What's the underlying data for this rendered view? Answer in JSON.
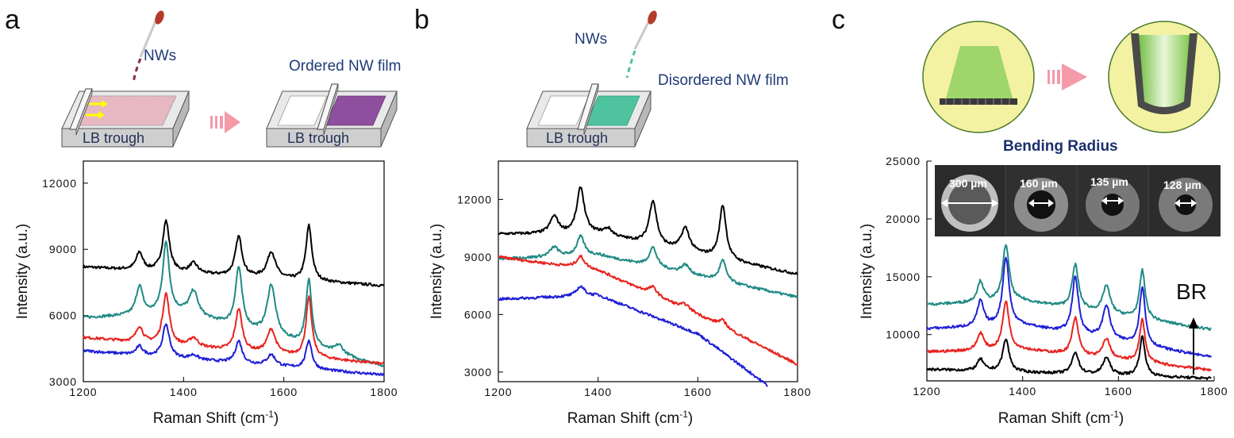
{
  "panels": {
    "a": {
      "label": "a",
      "nws": "NWs",
      "film": "Ordered NW film",
      "trough1": "LB trough",
      "trough2": "LB trough"
    },
    "b": {
      "label": "b",
      "nws": "NWs",
      "film": "Disordered NW film",
      "trough": "LB trough"
    },
    "c": {
      "label": "c",
      "bending": "Bending  Radius",
      "br": "BR",
      "insets": [
        "300 µm",
        "160 µm",
        "135 µm",
        "128 µm"
      ]
    }
  },
  "colors": {
    "black": "#000000",
    "teal": "#1f8a84",
    "red": "#e8231f",
    "blue": "#1f1fd6",
    "pink": "#f49aa8",
    "purple": "#8e4f9e",
    "green": "#4fc39e",
    "yellowgreen": "#f3f2a2"
  },
  "chart_data": [
    {
      "type": "line",
      "panel": "a",
      "xlabel": "Raman Shift (cm-1)",
      "ylabel": "Intensity (a.u.)",
      "xlim": [
        1200,
        1800
      ],
      "ylim": [
        3000,
        13000
      ],
      "xticks": [
        1200,
        1400,
        1600,
        1800
      ],
      "yticks": [
        3000,
        6000,
        9000,
        12000
      ],
      "xtick_labels": [
        "1200",
        "1400",
        "1600",
        "1800"
      ],
      "ytick_labels": [
        "3000",
        "6000",
        "9000",
        "12000"
      ],
      "series": [
        {
          "color": "black",
          "baseline": [
            [
              1200,
              8200
            ],
            [
              1800,
              7350
            ]
          ],
          "peaks": [
            [
              1312,
              800,
              8
            ],
            [
              1365,
              2300,
              8
            ],
            [
              1420,
              450,
              10
            ],
            [
              1510,
              1800,
              8
            ],
            [
              1575,
              1200,
              10
            ],
            [
              1650,
              2500,
              7
            ]
          ]
        },
        {
          "color": "teal",
          "baseline": [
            [
              1200,
              5900
            ],
            [
              1400,
              6100
            ],
            [
              1800,
              3700
            ]
          ],
          "peaks": [
            [
              1312,
              1300,
              8
            ],
            [
              1365,
              3200,
              8
            ],
            [
              1420,
              1100,
              10
            ],
            [
              1510,
              2700,
              8
            ],
            [
              1575,
              2300,
              10
            ],
            [
              1650,
              3000,
              7
            ],
            [
              1710,
              400,
              10
            ]
          ]
        },
        {
          "color": "red",
          "baseline": [
            [
              1200,
              5000
            ],
            [
              1800,
              3800
            ]
          ],
          "peaks": [
            [
              1312,
              700,
              8
            ],
            [
              1365,
              2300,
              8
            ],
            [
              1420,
              400,
              10
            ],
            [
              1510,
              1900,
              8
            ],
            [
              1575,
              1100,
              10
            ],
            [
              1650,
              2700,
              7
            ]
          ]
        },
        {
          "color": "blue",
          "baseline": [
            [
              1200,
              4400
            ],
            [
              1800,
              3300
            ]
          ],
          "peaks": [
            [
              1312,
              400,
              8
            ],
            [
              1365,
              1500,
              8
            ],
            [
              1420,
              200,
              10
            ],
            [
              1510,
              1000,
              8
            ],
            [
              1575,
              500,
              10
            ],
            [
              1650,
              1300,
              7
            ]
          ]
        }
      ]
    },
    {
      "type": "line",
      "panel": "b",
      "xlabel": "Raman Shift (cm-1)",
      "ylabel": "Intensity (a.u.)",
      "xlim": [
        1200,
        1800
      ],
      "ylim": [
        2500,
        14000
      ],
      "xticks": [
        1200,
        1400,
        1600,
        1800
      ],
      "yticks": [
        3000,
        6000,
        9000,
        12000
      ],
      "xtick_labels": [
        "1200",
        "1400",
        "1600",
        "1800"
      ],
      "ytick_labels": [
        "3000",
        "6000",
        "9000",
        "12000"
      ],
      "series": [
        {
          "color": "black",
          "baseline": [
            [
              1200,
              10200
            ],
            [
              1400,
              10200
            ],
            [
              1800,
              8100
            ]
          ],
          "peaks": [
            [
              1312,
              900,
              10
            ],
            [
              1365,
              2400,
              9
            ],
            [
              1420,
              350,
              10
            ],
            [
              1510,
              2300,
              9
            ],
            [
              1575,
              1200,
              10
            ],
            [
              1650,
              2800,
              8
            ]
          ]
        },
        {
          "color": "teal",
          "baseline": [
            [
              1200,
              8900
            ],
            [
              1400,
              9100
            ],
            [
              1800,
              6900
            ]
          ],
          "peaks": [
            [
              1312,
              500,
              10
            ],
            [
              1365,
              1000,
              9
            ],
            [
              1510,
              1000,
              9
            ],
            [
              1575,
              450,
              10
            ],
            [
              1650,
              1100,
              8
            ]
          ]
        },
        {
          "color": "red",
          "baseline": [
            [
              1200,
              9000
            ],
            [
              1400,
              8300
            ],
            [
              1600,
              6000
            ],
            [
              1800,
              3400
            ]
          ],
          "peaks": [
            [
              1365,
              600,
              10
            ],
            [
              1510,
              400,
              10
            ],
            [
              1575,
              250,
              10
            ],
            [
              1650,
              350,
              10
            ]
          ]
        },
        {
          "color": "blue",
          "baseline": [
            [
              1200,
              6800
            ],
            [
              1400,
              7000
            ],
            [
              1600,
              5000
            ],
            [
              1740,
              2300
            ]
          ],
          "peaks": [
            [
              1365,
              500,
              10
            ]
          ],
          "xmax": 1740
        }
      ]
    },
    {
      "type": "line",
      "panel": "c",
      "xlabel": "Raman Shift (cm-1)",
      "ylabel": "Intensity (a.u.)",
      "xlim": [
        1200,
        1800
      ],
      "ylim": [
        6000,
        25000
      ],
      "xticks": [
        1200,
        1400,
        1600,
        1800
      ],
      "yticks": [
        10000,
        15000,
        20000,
        25000
      ],
      "xtick_labels": [
        "1200",
        "1400",
        "1600",
        "1800"
      ],
      "ytick_labels": [
        "10000",
        "15000",
        "20000",
        "25000"
      ],
      "series": [
        {
          "color": "teal",
          "baseline": [
            [
              1200,
              12600
            ],
            [
              1400,
              12900
            ],
            [
              1800,
              10400
            ]
          ],
          "peaks": [
            [
              1312,
              1800,
              8
            ],
            [
              1365,
              4900,
              8
            ],
            [
              1510,
              3800,
              8
            ],
            [
              1575,
              2400,
              9
            ],
            [
              1650,
              4200,
              7
            ]
          ],
          "xmax": 1795
        },
        {
          "color": "blue",
          "baseline": [
            [
              1200,
              10500
            ],
            [
              1400,
              10800
            ],
            [
              1800,
              8000
            ]
          ],
          "peaks": [
            [
              1312,
              2200,
              8
            ],
            [
              1365,
              5900,
              8
            ],
            [
              1510,
              4900,
              8
            ],
            [
              1575,
              2900,
              9
            ],
            [
              1650,
              5100,
              7
            ]
          ],
          "xmax": 1795
        },
        {
          "color": "red",
          "baseline": [
            [
              1200,
              8500
            ],
            [
              1400,
              8700
            ],
            [
              1800,
              6900
            ]
          ],
          "peaks": [
            [
              1312,
              1500,
              8
            ],
            [
              1365,
              4200,
              8
            ],
            [
              1510,
              3200,
              8
            ],
            [
              1575,
              1700,
              9
            ],
            [
              1650,
              3700,
              7
            ]
          ],
          "xmax": 1795
        },
        {
          "color": "black",
          "baseline": [
            [
              1200,
              7000
            ],
            [
              1800,
              6200
            ]
          ],
          "peaks": [
            [
              1312,
              1000,
              8
            ],
            [
              1365,
              2800,
              8
            ],
            [
              1510,
              1900,
              8
            ],
            [
              1575,
              1500,
              9
            ],
            [
              1650,
              3400,
              7
            ]
          ],
          "xmax": 1795
        }
      ]
    }
  ]
}
